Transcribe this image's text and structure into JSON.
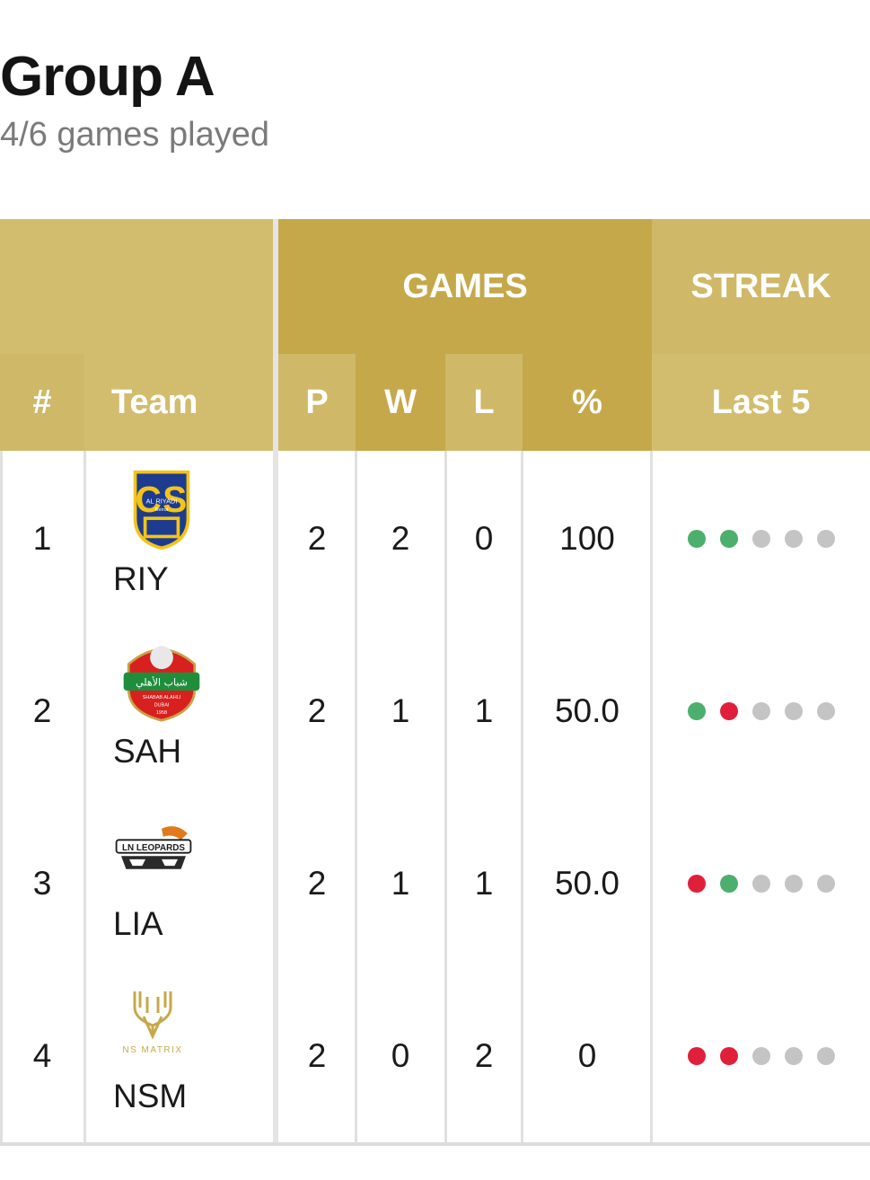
{
  "group": {
    "title": "Group A",
    "subtitle": "4/6 games played"
  },
  "header": {
    "games_label": "GAMES",
    "streak_label": "STREAK",
    "columns": {
      "rank": "#",
      "team": "Team",
      "played": "P",
      "won": "W",
      "lost": "L",
      "pct": "%",
      "last5": "Last 5"
    }
  },
  "colors": {
    "win": "#4caf6e",
    "loss": "#e0203a",
    "none": "#c4c4c4",
    "header_gold": "#c5a84a"
  },
  "rows": [
    {
      "rank": "1",
      "team": "RIY",
      "logo": "al-riyadi-beirut-logo",
      "logo_text": [
        "AL RIYADI",
        "Beirut"
      ],
      "played": "2",
      "won": "2",
      "lost": "0",
      "pct": "100",
      "streak": [
        "win",
        "win",
        "none",
        "none",
        "none"
      ]
    },
    {
      "rank": "2",
      "team": "SAH",
      "logo": "shabab-al-ahli-logo",
      "logo_text": [
        "شباب الأهلي",
        "SHABAB ALAHLI",
        "DUBAI",
        "1958"
      ],
      "played": "2",
      "won": "1",
      "lost": "1",
      "pct": "50.0",
      "streak": [
        "win",
        "loss",
        "none",
        "none",
        "none"
      ]
    },
    {
      "rank": "3",
      "team": "LIA",
      "logo": "ln-leopards-logo",
      "logo_text": [
        "LN LEOPARDS"
      ],
      "played": "2",
      "won": "1",
      "lost": "1",
      "pct": "50.0",
      "streak": [
        "loss",
        "win",
        "none",
        "none",
        "none"
      ]
    },
    {
      "rank": "4",
      "team": "NSM",
      "logo": "ns-matrix-logo",
      "logo_text": [
        "NS MATRIX"
      ],
      "played": "2",
      "won": "0",
      "lost": "2",
      "pct": "0",
      "streak": [
        "loss",
        "loss",
        "none",
        "none",
        "none"
      ]
    }
  ]
}
